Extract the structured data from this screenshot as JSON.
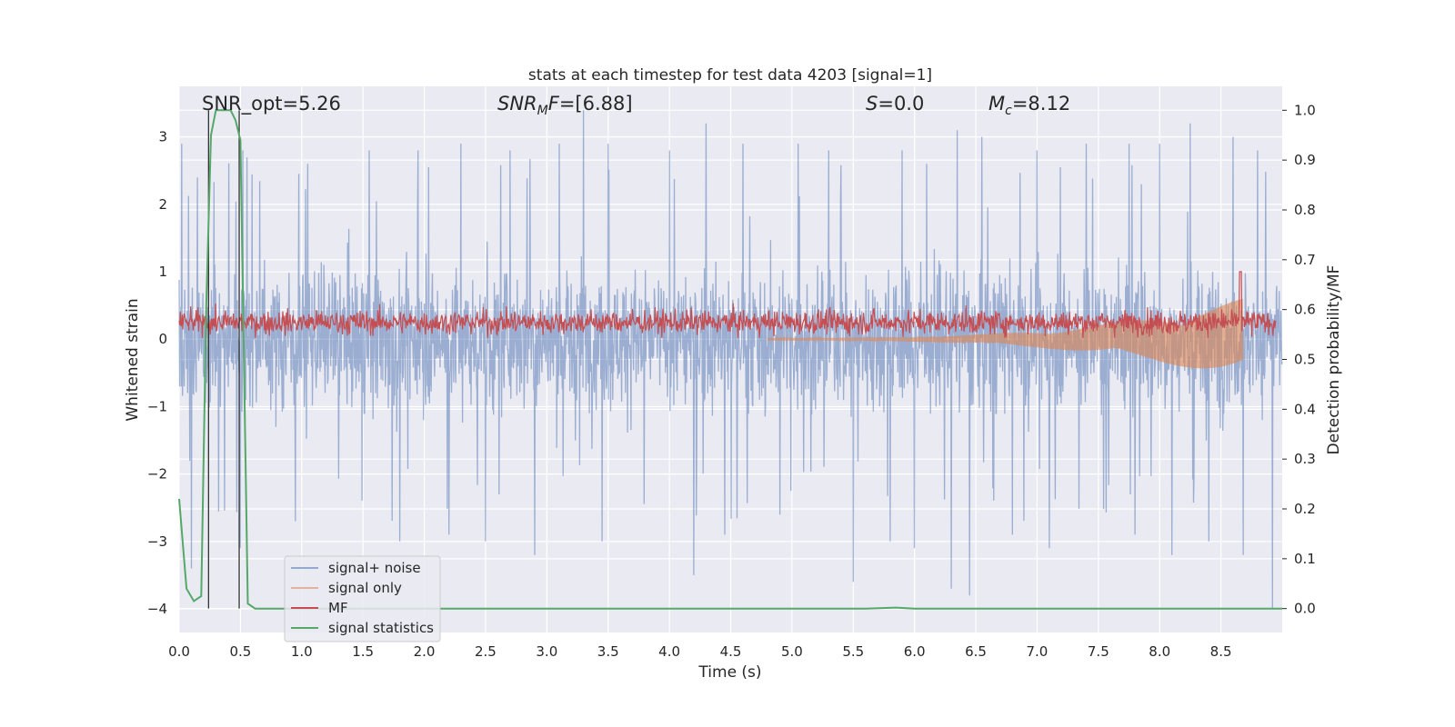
{
  "chart_data": {
    "type": "line",
    "title": "stats at each timestep for test data 4203 [signal=1]",
    "xlabel": "Time (s)",
    "ylabel": "Whitened strain",
    "ylabel_right": "Detection probability/MF",
    "xlim": [
      0.0,
      9.0
    ],
    "ylim": [
      -4.35,
      3.75
    ],
    "ylim_right": [
      -0.048,
      1.048
    ],
    "grid": true,
    "x_ticks": [
      "0.0",
      "0.5",
      "1.0",
      "1.5",
      "2.0",
      "2.5",
      "3.0",
      "3.5",
      "4.0",
      "4.5",
      "5.0",
      "5.5",
      "6.0",
      "6.5",
      "7.0",
      "7.5",
      "8.0",
      "8.5"
    ],
    "y_ticks_left": [
      "−4",
      "−3",
      "−2",
      "−1",
      "0",
      "1",
      "2",
      "3"
    ],
    "y_ticks_right": [
      "0.0",
      "0.1",
      "0.2",
      "0.3",
      "0.4",
      "0.5",
      "0.6",
      "0.7",
      "0.8",
      "0.9",
      "1.0"
    ],
    "annotations": {
      "snr_opt": "SNR_opt=5.26",
      "snr_mf": "=[6.88]",
      "snr_mf_name": "SNR",
      "snr_mf_sub": "M",
      "snr_mf_tail": "F",
      "s_name": "S",
      "s_value": "=0.0",
      "mc_name": "M",
      "mc_sub": "c",
      "mc_value": "=8.12"
    },
    "legend": {
      "placement": "lower-left",
      "entries": [
        "signal+ noise",
        "signal only",
        "MF",
        "signal statistics"
      ]
    },
    "series": [
      {
        "name": "signal+ noise",
        "axis": "left",
        "color": "#4c72b0",
        "description_values": {
          "typical_range": [
            -1.0,
            1.2
          ],
          "extreme_range": [
            -4.0,
            3.4
          ]
        },
        "spikes_up": [
          [
            0.02,
            2.9
          ],
          [
            0.15,
            2.4
          ],
          [
            0.52,
            2.8
          ],
          [
            1.05,
            2.6
          ],
          [
            1.55,
            2.8
          ],
          [
            1.95,
            2.8
          ],
          [
            2.3,
            2.9
          ],
          [
            2.7,
            2.8
          ],
          [
            3.1,
            2.9
          ],
          [
            3.3,
            3.4
          ],
          [
            3.5,
            2.9
          ],
          [
            4.0,
            2.8
          ],
          [
            4.3,
            3.2
          ],
          [
            4.6,
            2.9
          ],
          [
            5.05,
            2.9
          ],
          [
            5.3,
            2.8
          ],
          [
            5.9,
            2.8
          ],
          [
            6.1,
            2.6
          ],
          [
            6.35,
            3.1
          ],
          [
            6.55,
            3.0
          ],
          [
            7.0,
            2.8
          ],
          [
            7.4,
            2.9
          ],
          [
            7.75,
            2.9
          ],
          [
            8.0,
            2.9
          ],
          [
            8.25,
            3.2
          ],
          [
            8.6,
            3.0
          ],
          [
            8.8,
            2.8
          ]
        ],
        "spikes_down": [
          [
            0.1,
            -3.4
          ],
          [
            0.5,
            -3.1
          ],
          [
            0.95,
            -2.7
          ],
          [
            1.8,
            -3.0
          ],
          [
            2.2,
            -2.9
          ],
          [
            2.5,
            -3.0
          ],
          [
            2.9,
            -3.2
          ],
          [
            3.45,
            -3.0
          ],
          [
            4.2,
            -3.5
          ],
          [
            4.45,
            -2.9
          ],
          [
            4.9,
            -2.6
          ],
          [
            5.5,
            -3.6
          ],
          [
            5.8,
            -3.0
          ],
          [
            6.0,
            -3.1
          ],
          [
            6.3,
            -3.7
          ],
          [
            6.45,
            -3.8
          ],
          [
            6.8,
            -2.9
          ],
          [
            7.1,
            -3.1
          ],
          [
            7.8,
            -2.9
          ],
          [
            8.1,
            -3.2
          ],
          [
            8.4,
            -3.0
          ],
          [
            8.68,
            -3.2
          ],
          [
            8.92,
            -4.0
          ]
        ]
      },
      {
        "name": "signal only",
        "axis": "left",
        "color": "#dd8452",
        "chirp_start": 4.8,
        "chirp_end": 8.68,
        "amplitude_start": 0.02,
        "amplitude_end": 0.6
      },
      {
        "name": "MF",
        "axis": "left",
        "color": "#c44e52",
        "band": [
          0.05,
          0.45
        ],
        "peak": [
          8.66,
          1.0
        ],
        "band_end": 8.95
      },
      {
        "name": "signal statistics",
        "axis": "right",
        "color": "#55a868",
        "x": [
          0.0,
          0.06,
          0.12,
          0.18,
          0.22,
          0.26,
          0.3,
          0.34,
          0.38,
          0.42,
          0.46,
          0.5,
          0.56,
          0.62,
          0.7,
          1.0,
          2.0,
          3.0,
          4.0,
          5.0,
          5.6,
          5.85,
          6.0,
          7.0,
          8.0,
          9.0
        ],
        "y": [
          0.22,
          0.04,
          0.015,
          0.025,
          0.6,
          0.95,
          1.0,
          1.0,
          1.0,
          1.0,
          0.98,
          0.94,
          0.01,
          0.0,
          0.0,
          0.0,
          0.0,
          0.0,
          0.0,
          0.0,
          0.0,
          0.002,
          0.0,
          0.0,
          0.0,
          0.0
        ]
      }
    ],
    "vertical_markers": [
      0.24,
      0.49
    ]
  }
}
